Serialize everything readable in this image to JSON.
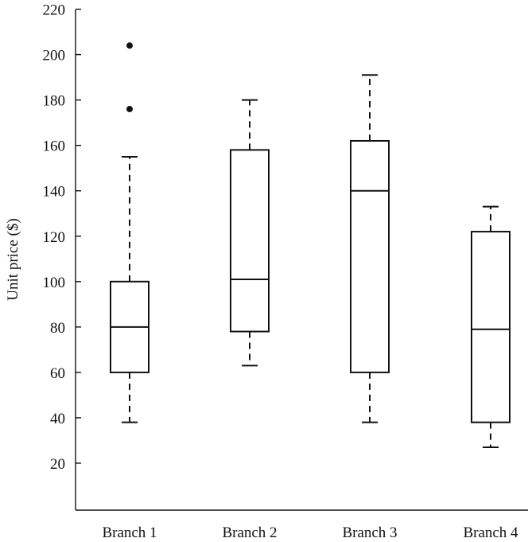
{
  "chart_data": {
    "type": "boxplot",
    "title": "",
    "xlabel": "",
    "ylabel": "Unit price ($)",
    "ylim": [
      0,
      220
    ],
    "yticks": [
      20,
      40,
      60,
      80,
      100,
      120,
      140,
      160,
      180,
      200,
      220
    ],
    "categories": [
      "Branch 1",
      "Branch 2",
      "Branch 3",
      "Branch 4"
    ],
    "boxes": [
      {
        "name": "Branch 1",
        "whisker_low": 38,
        "q1": 60,
        "median": 80,
        "q3": 100,
        "whisker_high": 155,
        "outliers": [
          176,
          204
        ]
      },
      {
        "name": "Branch 2",
        "whisker_low": 63,
        "q1": 78,
        "median": 101,
        "q3": 158,
        "whisker_high": 180,
        "outliers": []
      },
      {
        "name": "Branch 3",
        "whisker_low": 38,
        "q1": 60,
        "median": 140,
        "q3": 162,
        "whisker_high": 191,
        "outliers": []
      },
      {
        "name": "Branch 4",
        "whisker_low": 27,
        "q1": 38,
        "median": 79,
        "q3": 122,
        "whisker_high": 133,
        "outliers": []
      }
    ],
    "grid": false,
    "colors": {
      "stroke": "#111111",
      "fill": "#ffffff"
    }
  }
}
